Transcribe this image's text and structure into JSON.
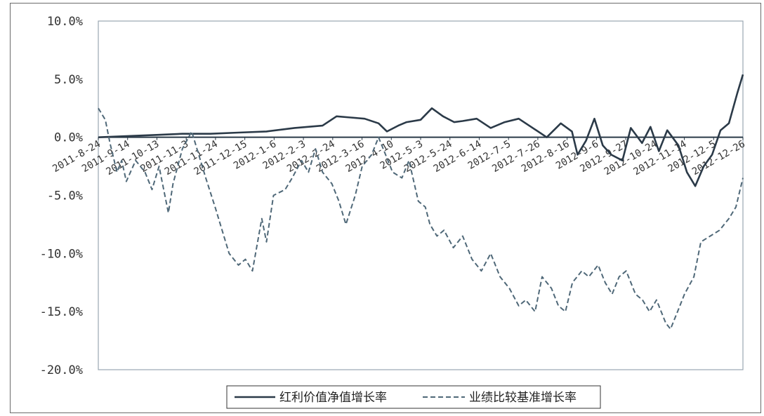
{
  "chart_data": {
    "type": "line",
    "ylim": [
      -20,
      10
    ],
    "y_ticks": [
      "10.0%",
      "5.0%",
      "0.0%",
      "-5.0%",
      "-10.0%",
      "-15.0%",
      "-20.0%"
    ],
    "x_tick_labels": [
      "2011-8-24",
      "2011-9-14",
      "2011-10-13",
      "2011-11-3",
      "2011-11-24",
      "2011-12-15",
      "2012-1-6",
      "2012-2-3",
      "2012-2-24",
      "2012-3-16",
      "2012-4-10",
      "2012-5-3",
      "2012-5-24",
      "2012-6-14",
      "2012-7-5",
      "2012-7-26",
      "2012-8-16",
      "2012-9-6",
      "2012-9-27",
      "2012-10-24",
      "2012-11-14",
      "2012-12-5",
      "2012-12-26"
    ],
    "series": [
      {
        "name": "红利价值净值增长率",
        "color": "#2b3a48",
        "style": "solid",
        "points": [
          [
            0,
            0
          ],
          [
            1,
            0.1
          ],
          [
            2,
            0.2
          ],
          [
            3,
            0.3
          ],
          [
            4,
            0.3
          ],
          [
            5,
            0.4
          ],
          [
            6,
            0.5
          ],
          [
            7,
            0.8
          ],
          [
            8,
            1.0
          ],
          [
            8.5,
            1.8
          ],
          [
            9,
            1.7
          ],
          [
            9.5,
            1.6
          ],
          [
            10,
            1.2
          ],
          [
            10.3,
            0.5
          ],
          [
            10.7,
            1.0
          ],
          [
            11,
            1.3
          ],
          [
            11.5,
            1.5
          ],
          [
            11.9,
            2.5
          ],
          [
            12.3,
            1.8
          ],
          [
            12.7,
            1.3
          ],
          [
            13,
            1.4
          ],
          [
            13.5,
            1.6
          ],
          [
            14,
            0.8
          ],
          [
            14.5,
            1.3
          ],
          [
            15,
            1.6
          ],
          [
            15.5,
            0.8
          ],
          [
            16,
            0
          ],
          [
            16.5,
            1.2
          ],
          [
            16.9,
            0.5
          ],
          [
            17.1,
            -1.5
          ],
          [
            17.4,
            -0.3
          ],
          [
            17.7,
            1.6
          ],
          [
            18,
            -0.7
          ],
          [
            18.3,
            -1.5
          ],
          [
            18.7,
            -2.0
          ],
          [
            19,
            0.8
          ],
          [
            19.4,
            -0.5
          ],
          [
            19.7,
            0.9
          ],
          [
            20,
            -1.2
          ],
          [
            20.3,
            0.6
          ],
          [
            20.7,
            -0.7
          ],
          [
            21,
            -3.0
          ],
          [
            21.3,
            -4.2
          ],
          [
            21.6,
            -2.5
          ],
          [
            21.9,
            -1.5
          ],
          [
            22.2,
            0.6
          ],
          [
            22.5,
            1.2
          ],
          [
            22.8,
            3.8
          ],
          [
            23,
            5.4
          ]
        ]
      },
      {
        "name": "业绩比较基准增长率",
        "color": "#4f6878",
        "style": "dashed",
        "points": [
          [
            0,
            2.5
          ],
          [
            0.3,
            1.5
          ],
          [
            0.5,
            -0.5
          ],
          [
            0.8,
            -3.0
          ],
          [
            1,
            -2.0
          ],
          [
            1.2,
            -3.8
          ],
          [
            1.6,
            -2.0
          ],
          [
            2,
            -3.0
          ],
          [
            2.3,
            -4.5
          ],
          [
            2.6,
            -2.5
          ],
          [
            2.8,
            -4.5
          ],
          [
            3,
            -6.5
          ],
          [
            3.2,
            -4.0
          ],
          [
            3.6,
            -1.0
          ],
          [
            4,
            0.5
          ],
          [
            4.3,
            -1.5
          ],
          [
            4.6,
            -3.5
          ],
          [
            5,
            -6.0
          ],
          [
            5.3,
            -8.0
          ],
          [
            5.6,
            -10.0
          ],
          [
            6,
            -11.0
          ],
          [
            6.3,
            -10.5
          ],
          [
            6.6,
            -11.5
          ],
          [
            7,
            -7.0
          ],
          [
            7.2,
            -9.0
          ],
          [
            7.5,
            -5.0
          ],
          [
            8,
            -4.5
          ],
          [
            8.3,
            -3.5
          ],
          [
            8.7,
            -2.0
          ],
          [
            9,
            -3.0
          ],
          [
            9.3,
            -1.0
          ],
          [
            9.6,
            -3.0
          ],
          [
            10,
            -4.0
          ],
          [
            10.3,
            -5.5
          ],
          [
            10.6,
            -7.5
          ],
          [
            11,
            -5.0
          ],
          [
            11.3,
            -2.5
          ],
          [
            11.7,
            -1.5
          ],
          [
            12,
            0
          ],
          [
            12.3,
            -1.5
          ],
          [
            12.6,
            -3.0
          ],
          [
            13,
            -3.5
          ],
          [
            13.3,
            -2.0
          ],
          [
            13.7,
            -5.5
          ],
          [
            14,
            -6.0
          ],
          [
            14.2,
            -7.5
          ],
          [
            14.5,
            -8.5
          ],
          [
            14.8,
            -8.0
          ],
          [
            15.2,
            -9.5
          ],
          [
            15.6,
            -8.5
          ],
          [
            16,
            -10.5
          ],
          [
            16.4,
            -11.5
          ],
          [
            16.8,
            -10.0
          ],
          [
            17.2,
            -12.0
          ],
          [
            17.6,
            -13.0
          ],
          [
            18,
            -14.5
          ],
          [
            18.3,
            -14.0
          ],
          [
            18.7,
            -15.0
          ],
          [
            19,
            -12.0
          ],
          [
            19.4,
            -13.0
          ],
          [
            19.7,
            -14.5
          ],
          [
            20,
            -15.0
          ],
          [
            20.3,
            -12.5
          ],
          [
            20.7,
            -11.5
          ],
          [
            21,
            -12.0
          ],
          [
            21.4,
            -11.0
          ],
          [
            21.7,
            -12.5
          ],
          [
            22,
            -13.5
          ],
          [
            22.3,
            -12.0
          ],
          [
            22.6,
            -11.5
          ],
          [
            23,
            -13.5
          ],
          [
            23.3,
            -14.0
          ],
          [
            23.6,
            -15.0
          ],
          [
            23.9,
            -14.0
          ],
          [
            24.3,
            -16.0
          ],
          [
            24.5,
            -16.5
          ],
          [
            24.8,
            -15.0
          ],
          [
            25.1,
            -13.5
          ],
          [
            25.5,
            -12.0
          ],
          [
            25.8,
            -9.0
          ],
          [
            26.2,
            -8.5
          ],
          [
            26.6,
            -8.0
          ],
          [
            27,
            -7.0
          ],
          [
            27.3,
            -6.0
          ],
          [
            27.6,
            -3.5
          ]
        ]
      }
    ],
    "grid": false,
    "legend": "bottom-center"
  }
}
